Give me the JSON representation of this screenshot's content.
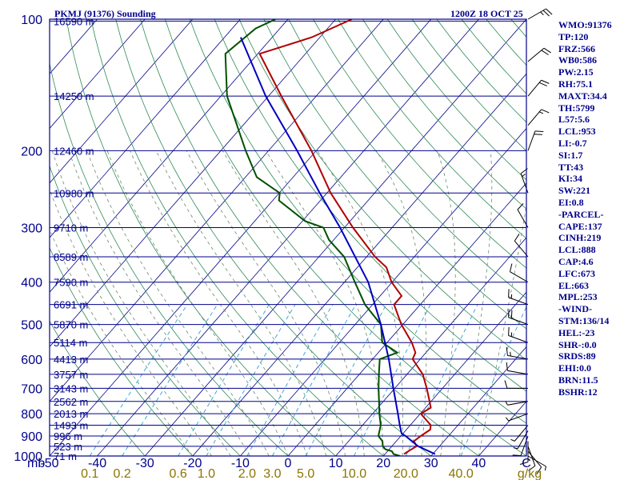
{
  "header": {
    "title": "PKMJ (91376) Sounding",
    "obs_time": "1200Z 18 OCT 25"
  },
  "stats": [
    "WMO:91376",
    "TP:120",
    "FRZ:566",
    "WB0:586",
    "PW:2.15",
    "RH:75.1",
    "MAXT:34.4",
    "TH:5799",
    "L57:5.6",
    "LCL:953",
    "LI:-0.7",
    "SI:1.7",
    "TT:43",
    "KI:34",
    "SW:221",
    "EI:0.8",
    "-PARCEL-",
    "CAPE:137",
    "CINH:219",
    "LCL:888",
    "CAP:4.6",
    "LFC:673",
    "EL:663",
    "MPL:253",
    "-WIND-",
    "STM:136/14",
    "HEL:-23",
    "SHR-:0.0",
    "SRDS:89",
    "EHI:0.0",
    "BRN:11.5",
    "BSHR:12"
  ],
  "colors": {
    "frame": "#00008b",
    "isobar": "#00008b",
    "isotherm": "#00008b",
    "dry_adiabat": "#2e8b57",
    "moist_adiabat": "#6a8a6a",
    "mixing_ratio": "#2f9fd8",
    "temperature": "#b00000",
    "dewpoint": "#005000",
    "parcel": "#0000c0",
    "mixing_label": "#8b7500"
  },
  "chart_data": {
    "type": "skew-t log-p sounding",
    "title": "PKMJ (91376) Sounding",
    "xlabel": "C",
    "ylabel": "mb",
    "x_unit": "C",
    "y_unit": "mb",
    "mixing_unit": "g/kg",
    "xlim": [
      -50,
      50
    ],
    "ylim": [
      1000,
      100
    ],
    "skew_degrees_per_decade": 80,
    "pressure_ticks": [
      100,
      200,
      300,
      400,
      500,
      600,
      700,
      800,
      900,
      1000
    ],
    "temperature_ticks": [
      -50,
      -40,
      -30,
      -20,
      -10,
      0,
      10,
      20,
      30,
      40
    ],
    "mixing_ratio_labels": [
      "0.1",
      "0.2",
      "0.6",
      "1.0",
      "2.0",
      "3.0",
      "5.0",
      "10.0",
      "20.0",
      "40.0"
    ],
    "height_levels": [
      {
        "p": 101,
        "z": "16590 m"
      },
      {
        "p": 150,
        "z": "14250 m"
      },
      {
        "p": 200,
        "z": "12460 m"
      },
      {
        "p": 250,
        "z": "10980 m"
      },
      {
        "p": 300,
        "z": "9710 m"
      },
      {
        "p": 350,
        "z": "8589 m"
      },
      {
        "p": 400,
        "z": "7590 m"
      },
      {
        "p": 450,
        "z": "6691 m"
      },
      {
        "p": 500,
        "z": "5870 m"
      },
      {
        "p": 550,
        "z": "5114 m"
      },
      {
        "p": 600,
        "z": "4413 m"
      },
      {
        "p": 650,
        "z": "3757 m"
      },
      {
        "p": 700,
        "z": "3143 m"
      },
      {
        "p": 750,
        "z": "2562 m"
      },
      {
        "p": 800,
        "z": "2013 m"
      },
      {
        "p": 850,
        "z": "1493 m"
      },
      {
        "p": 900,
        "z": "996 m"
      },
      {
        "p": 950,
        "z": "523 m"
      },
      {
        "p": 1000,
        "z": "71 m"
      }
    ],
    "series": [
      {
        "name": "Temperature",
        "key": "temperature",
        "points": [
          {
            "p": 990,
            "t": 24.0
          },
          {
            "p": 970,
            "t": 24.5
          },
          {
            "p": 950,
            "t": 25.2
          },
          {
            "p": 925,
            "t": 23.7
          },
          {
            "p": 900,
            "t": 24.2
          },
          {
            "p": 870,
            "t": 25.0
          },
          {
            "p": 850,
            "t": 24.3
          },
          {
            "p": 800,
            "t": 20.1
          },
          {
            "p": 775,
            "t": 21.1
          },
          {
            "p": 750,
            "t": 19.7
          },
          {
            "p": 700,
            "t": 16.7
          },
          {
            "p": 650,
            "t": 13.3
          },
          {
            "p": 600,
            "t": 8.4
          },
          {
            "p": 580,
            "t": 7.8
          },
          {
            "p": 550,
            "t": 5.2
          },
          {
            "p": 500,
            "t": -0.3
          },
          {
            "p": 450,
            "t": -5.5
          },
          {
            "p": 430,
            "t": -5.5
          },
          {
            "p": 400,
            "t": -10.1
          },
          {
            "p": 370,
            "t": -13.9
          },
          {
            "p": 350,
            "t": -18.2
          },
          {
            "p": 300,
            "t": -28.2
          },
          {
            "p": 250,
            "t": -39.2
          },
          {
            "p": 200,
            "t": -51.0
          },
          {
            "p": 150,
            "t": -67.3
          },
          {
            "p": 120,
            "t": -79.6
          },
          {
            "p": 110,
            "t": -71.7
          },
          {
            "p": 100,
            "t": -66.6
          }
        ]
      },
      {
        "name": "Dewpoint",
        "key": "dewpoint",
        "points": [
          {
            "p": 1000,
            "t": 23.5
          },
          {
            "p": 990,
            "t": 21.8
          },
          {
            "p": 975,
            "t": 20.9
          },
          {
            "p": 965,
            "t": 19.2
          },
          {
            "p": 950,
            "t": 18.1
          },
          {
            "p": 925,
            "t": 17.1
          },
          {
            "p": 900,
            "t": 15.3
          },
          {
            "p": 850,
            "t": 13.8
          },
          {
            "p": 800,
            "t": 11.4
          },
          {
            "p": 750,
            "t": 9.1
          },
          {
            "p": 700,
            "t": 6.6
          },
          {
            "p": 650,
            "t": 4.1
          },
          {
            "p": 600,
            "t": 1.5
          },
          {
            "p": 580,
            "t": 4.0
          },
          {
            "p": 550,
            "t": -1.0
          },
          {
            "p": 500,
            "t": -4.6
          },
          {
            "p": 450,
            "t": -11.6
          },
          {
            "p": 400,
            "t": -17.8
          },
          {
            "p": 350,
            "t": -24.7
          },
          {
            "p": 320,
            "t": -31.0
          },
          {
            "p": 300,
            "t": -34.4
          },
          {
            "p": 290,
            "t": -39.4
          },
          {
            "p": 260,
            "t": -48.7
          },
          {
            "p": 250,
            "t": -49.9
          },
          {
            "p": 230,
            "t": -57.6
          },
          {
            "p": 200,
            "t": -64.8
          },
          {
            "p": 150,
            "t": -78.7
          },
          {
            "p": 120,
            "t": -86.8
          },
          {
            "p": 105,
            "t": -85.1
          },
          {
            "p": 100,
            "t": -82.6
          }
        ]
      },
      {
        "name": "Parcel",
        "key": "parcel",
        "points": [
          {
            "p": 990,
            "t": 30.5
          },
          {
            "p": 950,
            "t": 25.5
          },
          {
            "p": 900,
            "t": 21.0
          },
          {
            "p": 888,
            "t": 19.7
          },
          {
            "p": 850,
            "t": 17.8
          },
          {
            "p": 800,
            "t": 15.3
          },
          {
            "p": 700,
            "t": 9.7
          },
          {
            "p": 600,
            "t": 3.4
          },
          {
            "p": 500,
            "t": -4.6
          },
          {
            "p": 400,
            "t": -15.0
          },
          {
            "p": 300,
            "t": -30.9
          },
          {
            "p": 250,
            "t": -41.5
          },
          {
            "p": 200,
            "t": -54.0
          },
          {
            "p": 150,
            "t": -70.6
          },
          {
            "p": 110,
            "t": -86.6
          }
        ]
      }
    ],
    "wind_barbs": [
      {
        "p": 1000,
        "dir": 120,
        "spd": 5
      },
      {
        "p": 975,
        "dir": 140,
        "spd": 10
      },
      {
        "p": 950,
        "dir": 160,
        "spd": 10
      },
      {
        "p": 925,
        "dir": 180,
        "spd": 10
      },
      {
        "p": 900,
        "dir": 200,
        "spd": 10
      },
      {
        "p": 875,
        "dir": 210,
        "spd": 5
      },
      {
        "p": 850,
        "dir": 220,
        "spd": 5
      },
      {
        "p": 800,
        "dir": 250,
        "spd": 5
      },
      {
        "p": 750,
        "dir": 260,
        "spd": 5
      },
      {
        "p": 700,
        "dir": 270,
        "spd": 10
      },
      {
        "p": 650,
        "dir": 280,
        "spd": 10
      },
      {
        "p": 600,
        "dir": 280,
        "spd": 15
      },
      {
        "p": 550,
        "dir": 290,
        "spd": 15
      },
      {
        "p": 500,
        "dir": 290,
        "spd": 20
      },
      {
        "p": 450,
        "dir": 290,
        "spd": 15
      },
      {
        "p": 400,
        "dir": 300,
        "spd": 10
      },
      {
        "p": 350,
        "dir": 320,
        "spd": 10
      },
      {
        "p": 300,
        "dir": 330,
        "spd": 10
      },
      {
        "p": 250,
        "dir": 340,
        "spd": 15
      },
      {
        "p": 200,
        "dir": 20,
        "spd": 20
      },
      {
        "p": 175,
        "dir": 40,
        "spd": 15
      },
      {
        "p": 150,
        "dir": 40,
        "spd": 20
      },
      {
        "p": 125,
        "dir": 50,
        "spd": 20
      },
      {
        "p": 100,
        "dir": 60,
        "spd": 25
      }
    ]
  }
}
